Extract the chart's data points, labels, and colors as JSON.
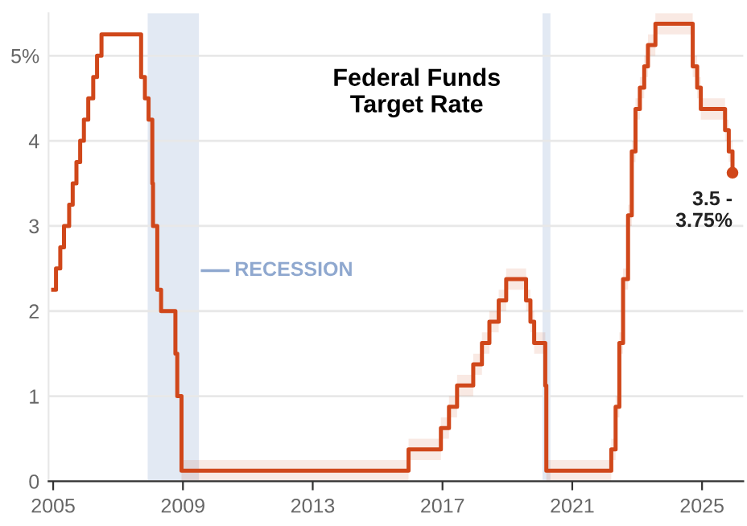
{
  "chart_data": {
    "type": "step",
    "title": "Federal Funds\nTarget Rate",
    "x": [
      "2005-01-01",
      "2005-02-02",
      "2005-03-22",
      "2005-05-03",
      "2005-06-30",
      "2005-08-09",
      "2005-09-20",
      "2005-11-01",
      "2005-12-13",
      "2006-01-31",
      "2006-03-28",
      "2006-05-10",
      "2006-06-29",
      "2007-09-18",
      "2007-10-31",
      "2007-12-11",
      "2008-01-22",
      "2008-01-30",
      "2008-03-18",
      "2008-04-30",
      "2008-10-08",
      "2008-10-29",
      "2008-12-16",
      "2015-12-16",
      "2016-12-14",
      "2017-03-15",
      "2017-06-14",
      "2017-12-13",
      "2018-03-21",
      "2018-06-13",
      "2018-09-26",
      "2018-12-19",
      "2019-07-31",
      "2019-09-18",
      "2019-10-30",
      "2020-03-03",
      "2020-03-15",
      "2022-03-16",
      "2022-05-04",
      "2022-06-15",
      "2022-07-27",
      "2022-09-21",
      "2022-11-02",
      "2022-12-14",
      "2023-02-01",
      "2023-03-22",
      "2023-05-03",
      "2023-07-26",
      "2024-09-18",
      "2024-11-07",
      "2024-12-18",
      "2025-09-17",
      "2025-10-29",
      "2025-12-10"
    ],
    "series": [
      {
        "color": "#d0471a",
        "values": [
          2.25,
          2.5,
          2.75,
          3.0,
          3.25,
          3.5,
          3.75,
          4.0,
          4.25,
          4.5,
          4.75,
          5.0,
          5.25,
          4.75,
          4.5,
          4.25,
          3.5,
          3.0,
          2.25,
          2.0,
          1.5,
          1.0,
          0.125,
          0.375,
          0.625,
          0.875,
          1.125,
          1.375,
          1.625,
          1.875,
          2.125,
          2.375,
          2.125,
          1.875,
          1.625,
          1.125,
          0.125,
          0.375,
          0.875,
          1.625,
          2.375,
          3.125,
          3.875,
          4.375,
          4.625,
          4.875,
          5.125,
          5.375,
          4.875,
          4.625,
          4.375,
          4.125,
          3.875,
          3.625
        ],
        "lower": [
          null,
          null,
          null,
          null,
          null,
          null,
          null,
          null,
          null,
          null,
          null,
          null,
          null,
          null,
          null,
          null,
          null,
          null,
          null,
          null,
          null,
          null,
          0,
          0.25,
          0.5,
          0.75,
          1.0,
          1.25,
          1.5,
          1.75,
          2.0,
          2.25,
          2.0,
          1.75,
          1.5,
          1.0,
          0,
          0.25,
          0.75,
          1.5,
          2.25,
          3.0,
          3.75,
          4.25,
          4.5,
          4.75,
          5.0,
          5.25,
          4.75,
          4.5,
          4.25,
          4.0,
          3.75,
          3.5
        ],
        "upper": [
          null,
          null,
          null,
          null,
          null,
          null,
          null,
          null,
          null,
          null,
          null,
          null,
          null,
          null,
          null,
          null,
          null,
          null,
          null,
          null,
          null,
          null,
          0.25,
          0.5,
          0.75,
          1.0,
          1.25,
          1.5,
          1.75,
          2.0,
          2.25,
          2.5,
          2.25,
          2.0,
          1.75,
          1.25,
          0.25,
          0.5,
          1.0,
          1.75,
          2.5,
          3.25,
          4.0,
          4.5,
          4.75,
          5.0,
          5.25,
          5.5,
          5.0,
          4.75,
          4.5,
          4.25,
          4.0,
          3.75
        ]
      },
      {
        "type": "scatter",
        "color": "#d0471a",
        "x": [
          "2025-12-10"
        ],
        "values": [
          3.625
        ]
      }
    ],
    "annotations": [
      {
        "text": "3.5 -\n3.75%",
        "x": "2025-12-10",
        "y": 3.625
      }
    ],
    "bands": [
      {
        "axis": "x",
        "from": "2007-12-01",
        "to": "2009-06-30",
        "label": "RECESSION",
        "color": "#e2e9f3"
      },
      {
        "axis": "x",
        "from": "2020-02-01",
        "to": "2020-04-30",
        "color": "#e2e9f3"
      }
    ],
    "xlim": [
      "2004-11-10",
      "2026-04-10"
    ],
    "xticks": [
      "2005",
      "2009",
      "2013",
      "2017",
      "2021",
      "2025"
    ],
    "ylim": [
      0,
      5.5
    ],
    "yticks": [
      0,
      1,
      2,
      3,
      4,
      {
        "value": 5,
        "label": "5%"
      }
    ],
    "grid": "y",
    "line_style": "solid"
  }
}
